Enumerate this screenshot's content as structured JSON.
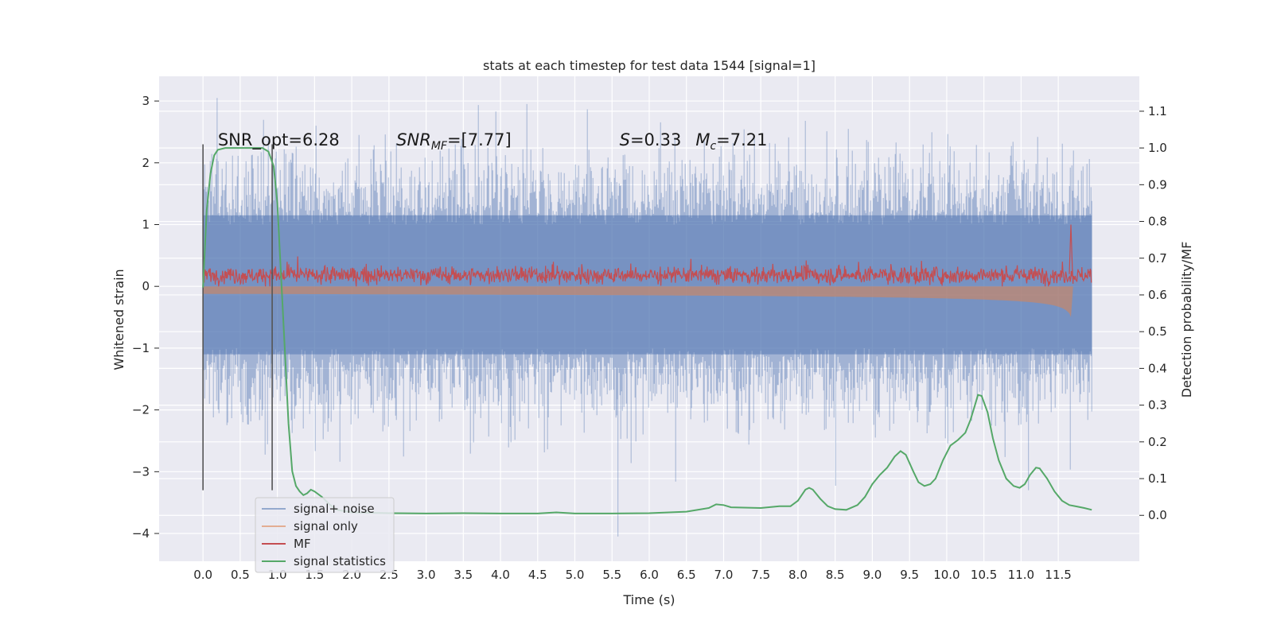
{
  "chart_data": {
    "type": "line",
    "title": "stats at each timestep for test data 1544 [signal=1]",
    "xlabel": "Time (s)",
    "ylabel": "Whitened strain",
    "ylabel_right": "Detection probability/MF",
    "x_ticks": [
      "0.0",
      "0.5",
      "1.0",
      "1.5",
      "2.0",
      "2.5",
      "3.0",
      "3.5",
      "4.0",
      "4.5",
      "5.0",
      "5.5",
      "6.0",
      "6.5",
      "7.0",
      "7.5",
      "8.0",
      "8.5",
      "9.0",
      "9.5",
      "10.0",
      "10.5",
      "11.0",
      "11.5"
    ],
    "x_tick_values": [
      0,
      0.5,
      1,
      1.5,
      2,
      2.5,
      3,
      3.5,
      4,
      4.5,
      5,
      5.5,
      6,
      6.5,
      7,
      7.5,
      8,
      8.5,
      9,
      9.5,
      10,
      10.5,
      11,
      11.5
    ],
    "y_ticks": [
      "3",
      "2",
      "1",
      "0",
      "−1",
      "−2",
      "−3",
      "−4"
    ],
    "y_tick_values": [
      3,
      2,
      1,
      0,
      -1,
      -2,
      -3,
      -4
    ],
    "y2_ticks": [
      "1.1",
      "1.0",
      "0.9",
      "0.8",
      "0.7",
      "0.6",
      "0.5",
      "0.4",
      "0.3",
      "0.2",
      "0.1",
      "0.0"
    ],
    "y2_tick_values": [
      1.1,
      1.0,
      0.9,
      0.8,
      0.7,
      0.6,
      0.5,
      0.4,
      0.3,
      0.2,
      0.1,
      0.0
    ],
    "xlim": [
      -0.59,
      12.59
    ],
    "ylim": [
      -4.45,
      3.4
    ],
    "y2lim": [
      -0.125,
      1.195
    ],
    "grid": true,
    "legend_position": "lower-left",
    "annotations": [
      {
        "id": "snr-opt",
        "text": "SNR_opt=6.28",
        "x": 0.2,
        "y": 2.28
      },
      {
        "id": "snr-mf",
        "text": "SNR_MF=[7.77]",
        "parts": [
          "SNR",
          "MF",
          "=[7.77]"
        ],
        "x": 2.6,
        "y": 2.28
      },
      {
        "id": "spin-mc",
        "text": "S=0.33   M_c=7.21",
        "parts": [
          "S",
          "=0.33",
          "M",
          "c",
          "=7.21"
        ],
        "x": 5.6,
        "y": 2.28
      }
    ],
    "vlines": [
      {
        "x": 0.0,
        "ymin": -3.3,
        "ymax": 2.3,
        "color": "#555555"
      },
      {
        "x": 0.93,
        "ymin": -3.3,
        "ymax": 2.3,
        "color": "#555555"
      }
    ],
    "series": [
      {
        "name": "signal+ noise",
        "color": "#4c72b0",
        "axis": "left",
        "x_range": [
          0.0,
          11.95
        ],
        "envelope_core": [
          -1.1,
          1.15
        ],
        "typical_extremes": [
          -2.2,
          2.2
        ],
        "max": 3.05,
        "min": -4.05
      },
      {
        "name": "signal only",
        "color": "#dd8452",
        "axis": "left",
        "chirp": {
          "t_start": 0.0,
          "t_merge": 11.67,
          "final_amplitude": 0.5
        }
      },
      {
        "name": "MF",
        "color": "#c44e52",
        "axis": "left",
        "x_range": [
          0.0,
          11.95
        ],
        "typical_range": [
          0.0,
          0.35
        ],
        "peak": {
          "x": 11.67,
          "y": 1.0
        }
      },
      {
        "name": "signal statistics",
        "color": "#55a868",
        "axis": "right",
        "points": [
          [
            0.0,
            0.62
          ],
          [
            0.05,
            0.83
          ],
          [
            0.1,
            0.93
          ],
          [
            0.15,
            0.98
          ],
          [
            0.2,
            0.995
          ],
          [
            0.3,
            1.0
          ],
          [
            0.5,
            1.0
          ],
          [
            0.7,
            1.0
          ],
          [
            0.8,
            1.0
          ],
          [
            0.88,
            0.99
          ],
          [
            0.95,
            0.95
          ],
          [
            1.0,
            0.85
          ],
          [
            1.05,
            0.65
          ],
          [
            1.1,
            0.45
          ],
          [
            1.15,
            0.25
          ],
          [
            1.2,
            0.12
          ],
          [
            1.25,
            0.08
          ],
          [
            1.3,
            0.065
          ],
          [
            1.35,
            0.055
          ],
          [
            1.4,
            0.06
          ],
          [
            1.45,
            0.07
          ],
          [
            1.5,
            0.065
          ],
          [
            1.6,
            0.05
          ],
          [
            1.7,
            0.03
          ],
          [
            1.8,
            0.015
          ],
          [
            2.0,
            0.008
          ],
          [
            2.5,
            0.006
          ],
          [
            3.0,
            0.005
          ],
          [
            3.5,
            0.006
          ],
          [
            4.0,
            0.005
          ],
          [
            4.5,
            0.005
          ],
          [
            4.75,
            0.008
          ],
          [
            5.0,
            0.005
          ],
          [
            5.5,
            0.005
          ],
          [
            6.0,
            0.006
          ],
          [
            6.5,
            0.01
          ],
          [
            6.8,
            0.02
          ],
          [
            6.9,
            0.03
          ],
          [
            7.0,
            0.028
          ],
          [
            7.1,
            0.022
          ],
          [
            7.5,
            0.02
          ],
          [
            7.75,
            0.025
          ],
          [
            7.9,
            0.025
          ],
          [
            8.0,
            0.04
          ],
          [
            8.1,
            0.07
          ],
          [
            8.15,
            0.075
          ],
          [
            8.2,
            0.07
          ],
          [
            8.3,
            0.045
          ],
          [
            8.4,
            0.025
          ],
          [
            8.5,
            0.017
          ],
          [
            8.65,
            0.015
          ],
          [
            8.8,
            0.028
          ],
          [
            8.9,
            0.05
          ],
          [
            9.0,
            0.085
          ],
          [
            9.1,
            0.11
          ],
          [
            9.2,
            0.13
          ],
          [
            9.3,
            0.16
          ],
          [
            9.38,
            0.175
          ],
          [
            9.45,
            0.165
          ],
          [
            9.55,
            0.12
          ],
          [
            9.62,
            0.09
          ],
          [
            9.7,
            0.08
          ],
          [
            9.78,
            0.085
          ],
          [
            9.85,
            0.1
          ],
          [
            9.95,
            0.15
          ],
          [
            10.05,
            0.19
          ],
          [
            10.15,
            0.205
          ],
          [
            10.25,
            0.225
          ],
          [
            10.32,
            0.26
          ],
          [
            10.38,
            0.3
          ],
          [
            10.42,
            0.328
          ],
          [
            10.47,
            0.325
          ],
          [
            10.55,
            0.28
          ],
          [
            10.62,
            0.21
          ],
          [
            10.7,
            0.15
          ],
          [
            10.8,
            0.1
          ],
          [
            10.9,
            0.08
          ],
          [
            10.98,
            0.075
          ],
          [
            11.05,
            0.085
          ],
          [
            11.12,
            0.11
          ],
          [
            11.2,
            0.13
          ],
          [
            11.25,
            0.128
          ],
          [
            11.35,
            0.1
          ],
          [
            11.45,
            0.065
          ],
          [
            11.55,
            0.04
          ],
          [
            11.65,
            0.028
          ],
          [
            11.75,
            0.024
          ],
          [
            11.85,
            0.02
          ],
          [
            11.95,
            0.015
          ]
        ]
      }
    ]
  },
  "legend": {
    "items": [
      {
        "label": "signal+ noise",
        "color": "#4c72b0",
        "opacity": 0.55
      },
      {
        "label": "signal only",
        "color": "#dd8452",
        "opacity": 0.6
      },
      {
        "label": "MF",
        "color": "#c44e52",
        "opacity": 1
      },
      {
        "label": "signal statistics",
        "color": "#55a868",
        "opacity": 1
      }
    ]
  },
  "colors": {
    "plot_background": "#eaeaf2",
    "grid": "#ffffff",
    "text": "#262626"
  }
}
